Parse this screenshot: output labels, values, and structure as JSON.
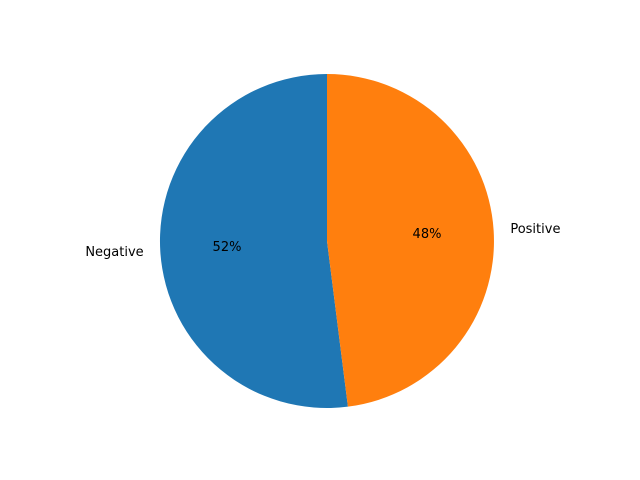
{
  "chart_data": {
    "type": "pie",
    "title": "",
    "start_angle_deg": 90,
    "direction": "counterclockwise",
    "slices": [
      {
        "label": "Negative",
        "value": 52,
        "pct_label": "52%",
        "color": "#1f77b4"
      },
      {
        "label": "Positive",
        "value": 48,
        "pct_label": "48%",
        "color": "#ff7f0e"
      }
    ],
    "legend": "none"
  }
}
